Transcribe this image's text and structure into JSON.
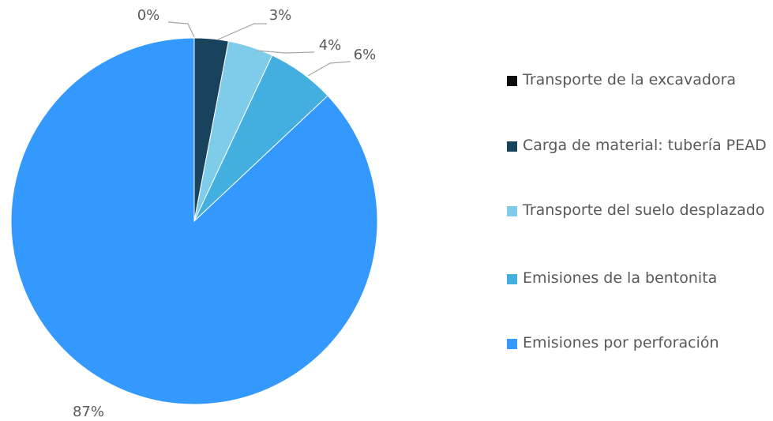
{
  "chart_data": {
    "type": "pie",
    "categories": [
      "Transporte de la excavadora",
      "Carga de material: tubería PEAD",
      "Transporte del suelo desplazado",
      "Emisiones de la bentonita",
      "Emisiones por perforación"
    ],
    "values": [
      0,
      3,
      4,
      6,
      87
    ],
    "value_labels": [
      "0%",
      "3%",
      "4%",
      "6%",
      "87%"
    ],
    "colors": [
      "#0d0d0d",
      "#17435c",
      "#7ecbea",
      "#43afe0",
      "#3399ff"
    ],
    "legend": "right"
  }
}
